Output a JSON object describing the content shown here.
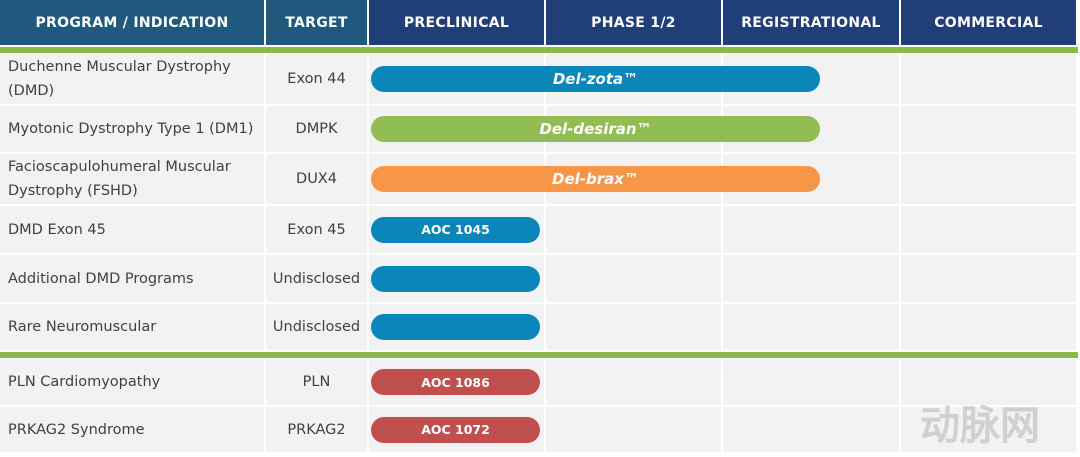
{
  "header": {
    "columns": [
      "PROGRAM / INDICATION",
      "TARGET",
      "PRECLINICAL",
      "PHASE 1/2",
      "REGISTRATIONAL",
      "COMMERCIAL"
    ],
    "colors": [
      "#1f5a7e",
      "#1f5a7e",
      "#203f78",
      "#203f78",
      "#203f78",
      "#203f78"
    ]
  },
  "divider_color": "#8db84a",
  "groups": [
    {
      "rows": [
        {
          "indication": "Duchenne Muscular Dystrophy (DMD)",
          "target": "Exon 44",
          "bar": {
            "label": "Del-zota™",
            "color": "#0b86b8",
            "through": "REGISTRATIONAL",
            "font_style": "italic"
          }
        },
        {
          "indication": "Myotonic Dystrophy Type 1 (DM1)",
          "target": "DMPK",
          "bar": {
            "label": "Del-desiran™",
            "color": "#92bd52",
            "through": "REGISTRATIONAL",
            "font_style": "italic"
          }
        },
        {
          "indication": "Facioscapulohumeral Muscular Dystrophy (FSHD)",
          "target": "DUX4",
          "bar": {
            "label": "Del-brax™",
            "color": "#f79646",
            "through": "REGISTRATIONAL",
            "font_style": "italic"
          }
        },
        {
          "indication": "DMD Exon 45",
          "target": "Exon 45",
          "bar": {
            "label": "AOC 1045",
            "color": "#0b86b8",
            "through": "PRECLINICAL",
            "font_style": "normal"
          }
        },
        {
          "indication": "Additional DMD Programs",
          "target": "Undisclosed",
          "bar": {
            "label": null,
            "color": "#0b86b8",
            "through": "PRECLINICAL",
            "font_style": "normal"
          }
        },
        {
          "indication": "Rare Neuromuscular",
          "target": "Undisclosed",
          "bar": {
            "label": null,
            "color": "#0b86b8",
            "through": "PRECLINICAL",
            "font_style": "normal"
          }
        }
      ]
    },
    {
      "rows": [
        {
          "indication": "PLN Cardiomyopathy",
          "target": "PLN",
          "bar": {
            "label": "AOC 1086",
            "color": "#c0504d",
            "through": "PRECLINICAL",
            "font_style": "normal"
          }
        },
        {
          "indication": "PRKAG2 Syndrome",
          "target": "PRKAG2",
          "bar": {
            "label": "AOC 1072",
            "color": "#c0504d",
            "through": "PRECLINICAL",
            "font_style": "normal"
          }
        }
      ]
    }
  ],
  "watermark": "动脉网"
}
